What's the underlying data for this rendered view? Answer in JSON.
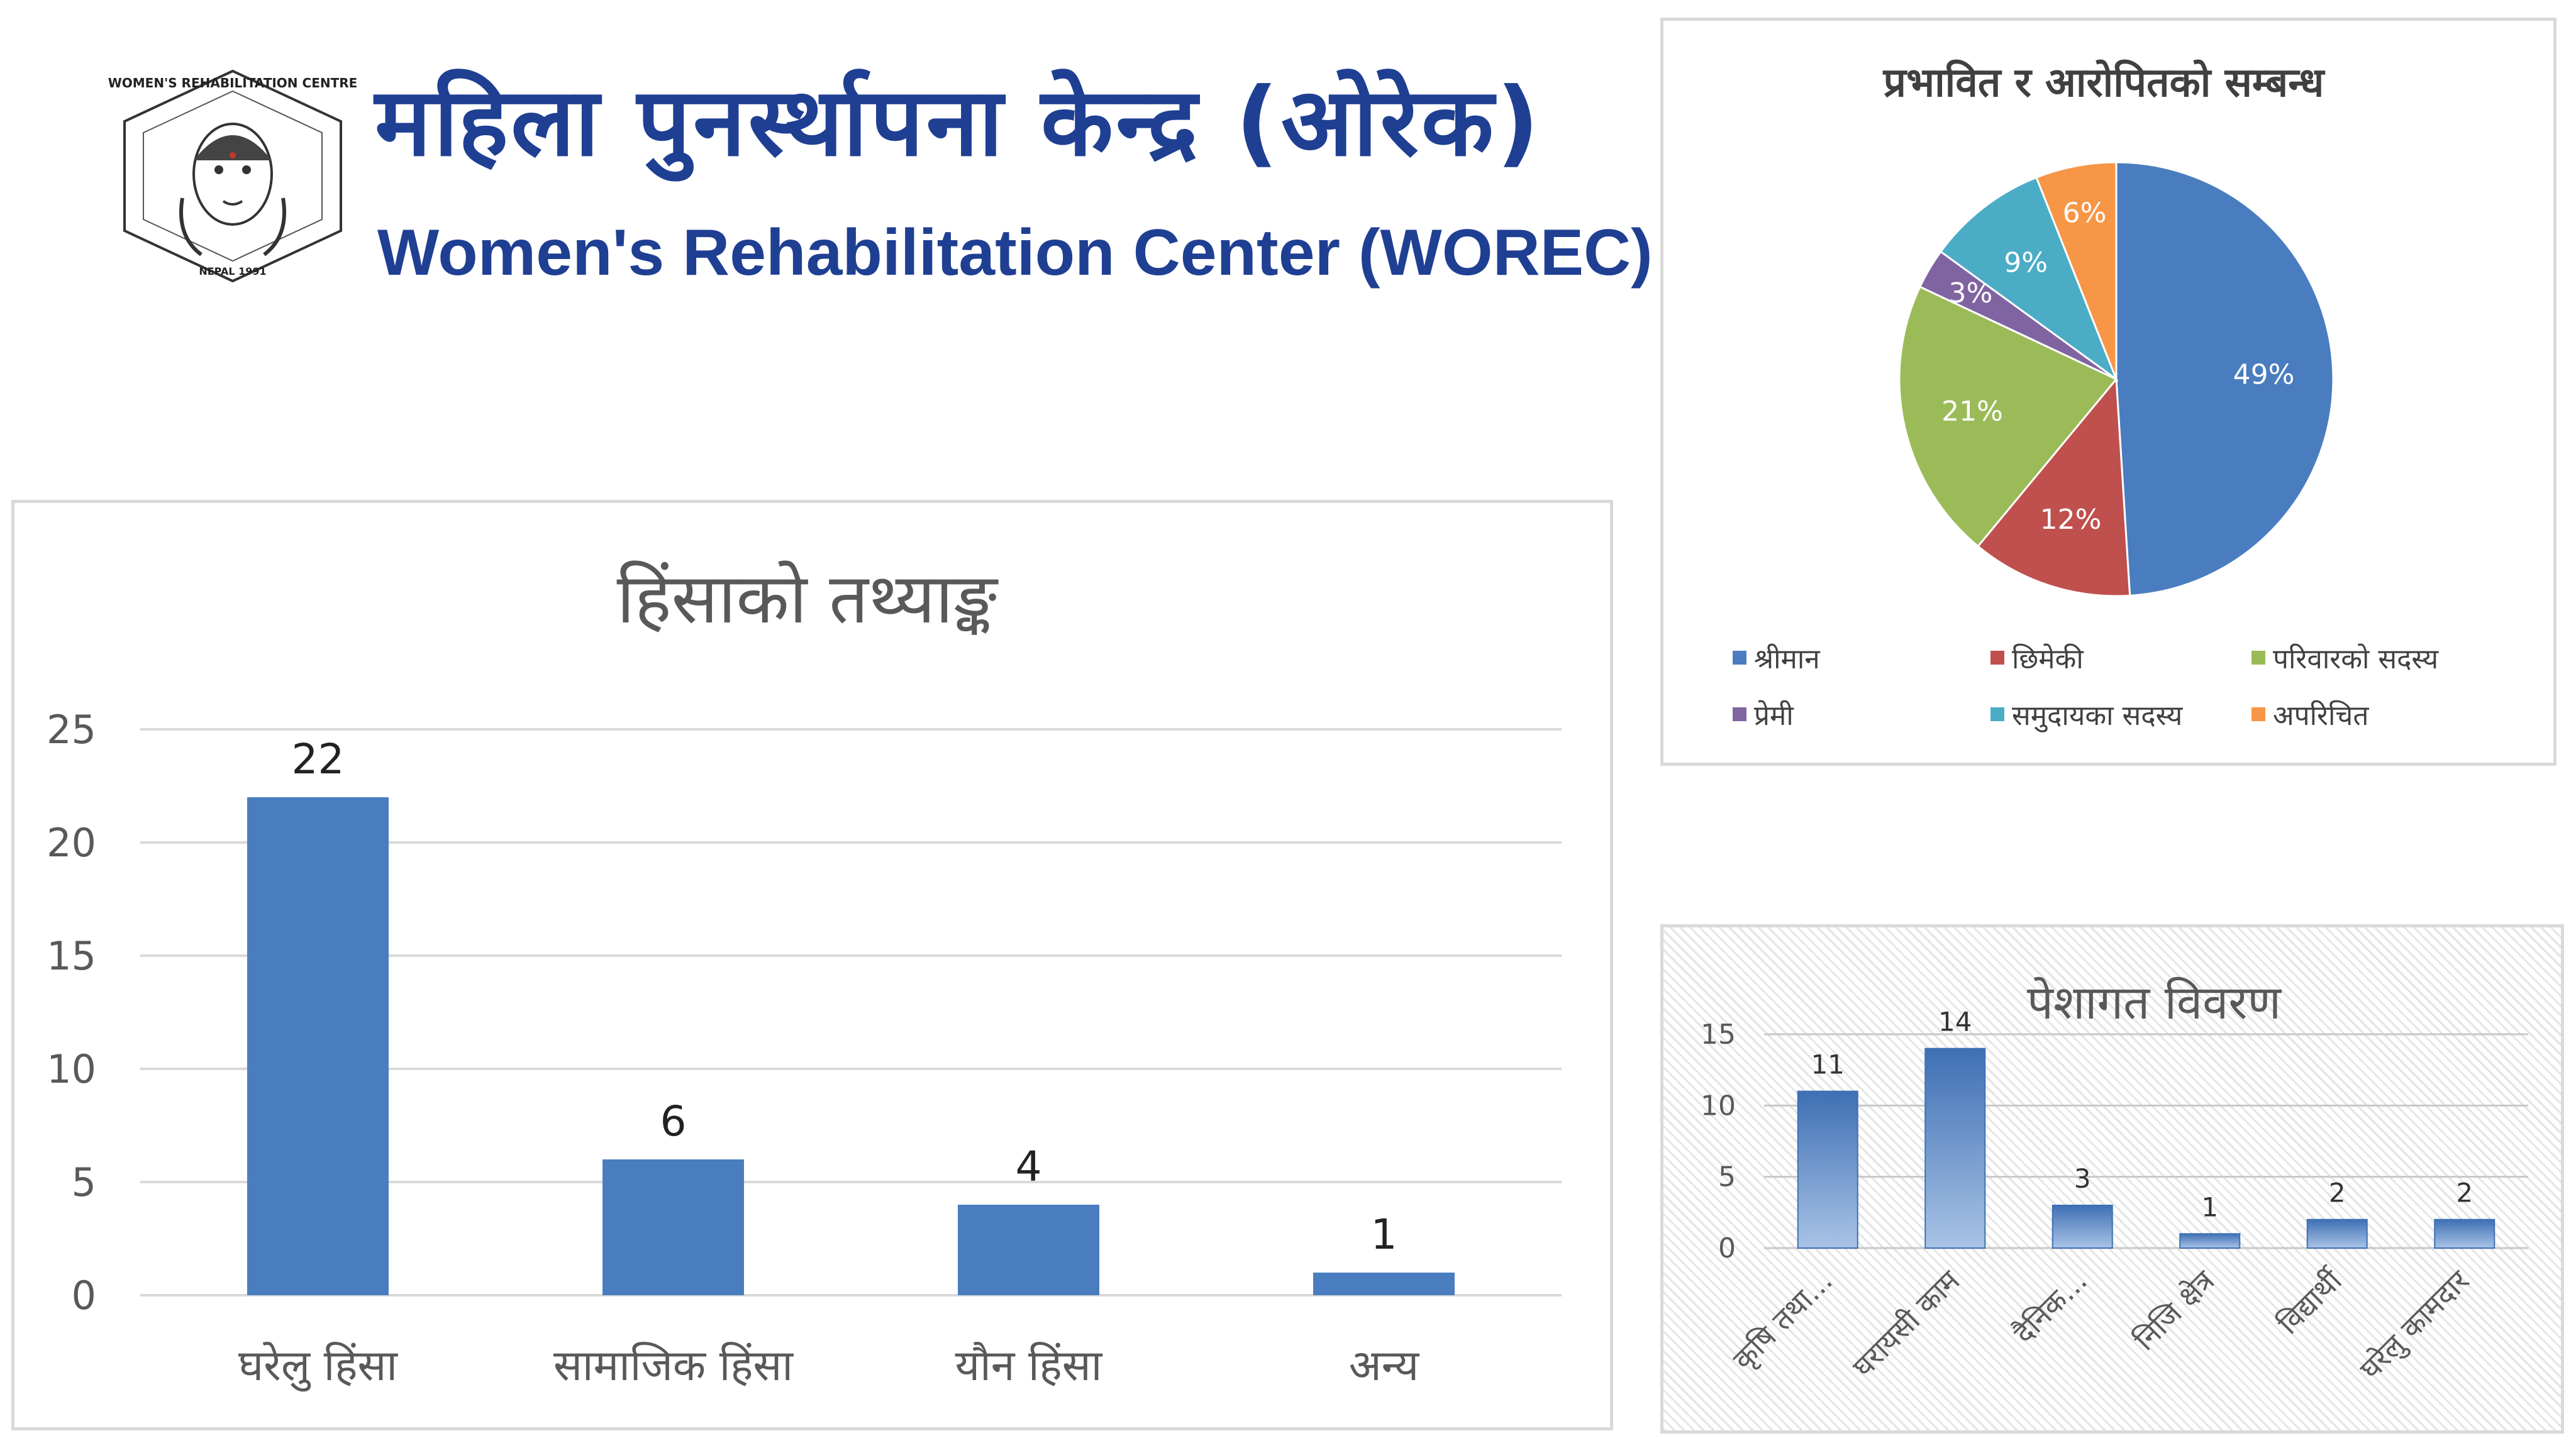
{
  "header": {
    "org_name_ne": "महिला पुनर्स्थापना केन्द्र (ओरेक)",
    "org_name_en": "Women's Rehabilitation Center (WOREC)",
    "logo": {
      "ring_text": "WOMEN'S REHABILITATION CENTRE",
      "bottom_text": "NEPAL 1991",
      "icon": "woman-face-logo"
    }
  },
  "colors": {
    "primary_blue": "#4a7dbf",
    "header_blue": "#1f3f93",
    "gridline": "#d9d9d9",
    "axis_text": "#595959"
  },
  "chart_data": [
    {
      "id": "violence",
      "type": "bar",
      "title": "हिंसाको तथ्याङ्क",
      "categories": [
        "घरेलु हिंसा",
        "सामाजिक हिंसा",
        "यौन हिंसा",
        "अन्य"
      ],
      "values": [
        22,
        6,
        4,
        1
      ],
      "data_labels": [
        "22",
        "6",
        "4",
        "1"
      ],
      "ylim": [
        0,
        25
      ],
      "yticks": [
        "0",
        "5",
        "10",
        "15",
        "20",
        "25"
      ],
      "grid": true,
      "color": "#4a7dbf"
    },
    {
      "id": "relation",
      "type": "pie",
      "title": "प्रभावित र आरोपितको सम्बन्ध",
      "slices": [
        {
          "label": "श्रीमान",
          "value": 49,
          "text": "49%",
          "color": "#4a7dbf"
        },
        {
          "label": "छिमेकी",
          "value": 12,
          "text": "12%",
          "color": "#c0504d"
        },
        {
          "label": "परिवारको सदस्य",
          "value": 21,
          "text": "21%",
          "color": "#9bbb59"
        },
        {
          "label": "प्रेमी",
          "value": 3,
          "text": "3%",
          "color": "#8064a2"
        },
        {
          "label": "समुदायका सदस्य",
          "value": 9,
          "text": "9%",
          "color": "#4bacc6"
        },
        {
          "label": "अपरिचित",
          "value": 6,
          "text": "6%",
          "color": "#f79646"
        }
      ],
      "legend_position": "bottom"
    },
    {
      "id": "occupation",
      "type": "bar",
      "title": "पेशागत विवरण",
      "categories": [
        "कृषि तथा...",
        "घरायसी काम",
        "दैनिक...",
        "निजि क्षेत्र",
        "विद्यार्थी",
        "घरेलु कामदार"
      ],
      "values": [
        11,
        14,
        3,
        1,
        2,
        2
      ],
      "data_labels": [
        "11",
        "14",
        "3",
        "1",
        "2",
        "2"
      ],
      "ylim": [
        0,
        15
      ],
      "yticks": [
        "0",
        "5",
        "10",
        "15"
      ],
      "grid": true,
      "color": "#4a7dbf"
    }
  ]
}
